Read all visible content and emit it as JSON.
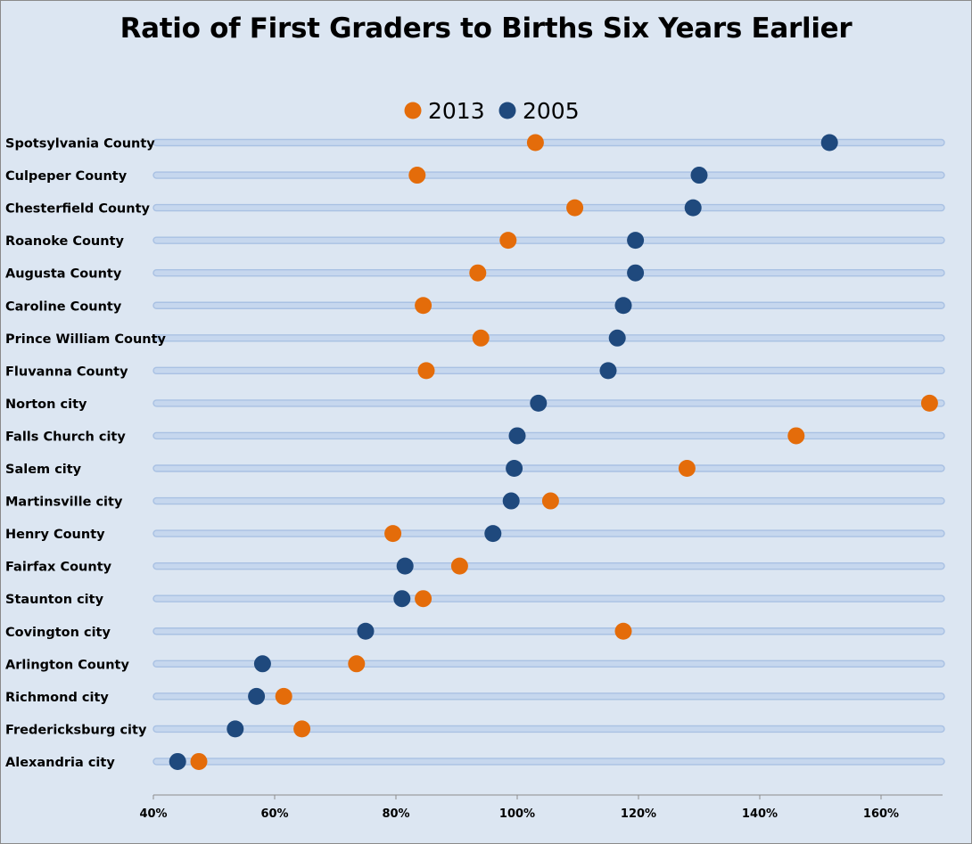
{
  "chart_data": {
    "type": "scatter",
    "title": "Ratio of First Graders to Births Six Years Earlier",
    "xlabel": "",
    "ylabel": "",
    "xlim": [
      40,
      170
    ],
    "x_ticks": [
      40,
      60,
      80,
      100,
      120,
      140,
      160
    ],
    "x_tick_labels": [
      "40%",
      "60%",
      "80%",
      "100%",
      "120%",
      "140%",
      "160%"
    ],
    "legend_position": "top",
    "grid": false,
    "categories": [
      "Spotsylvania County",
      "Culpeper County",
      "Chesterfield County",
      "Roanoke County",
      "Augusta County",
      "Caroline County",
      "Prince William County",
      "Fluvanna County",
      "Norton city",
      "Falls Church city",
      "Salem city",
      "Martinsville city",
      "Henry County",
      "Fairfax County",
      "Staunton city",
      "Covington city",
      "Arlington County",
      "Richmond city",
      "Fredericksburg city",
      "Alexandria city"
    ],
    "series": [
      {
        "name": "2013",
        "color": "#e46c0a",
        "values": [
          103,
          83.5,
          109.5,
          98.5,
          93.5,
          84.5,
          94,
          85,
          168,
          146,
          128,
          105.5,
          79.5,
          90.5,
          84.5,
          117.5,
          73.5,
          61.5,
          64.5,
          47.5
        ]
      },
      {
        "name": "2005",
        "color": "#1f497d",
        "values": [
          151.5,
          130,
          129,
          119.5,
          119.5,
          117.5,
          116.5,
          115,
          103.5,
          100,
          99.5,
          99,
          96,
          81.5,
          81,
          75,
          58,
          57,
          53.5,
          44
        ]
      }
    ],
    "track_color": "#a9c1e3"
  }
}
